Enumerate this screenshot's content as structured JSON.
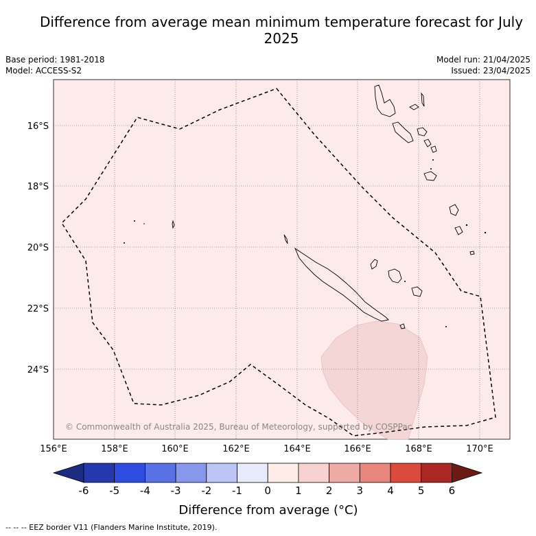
{
  "title": "Difference from average mean minimum temperature forecast for July 2025",
  "meta": {
    "base_period": "Base period: 1981-2018",
    "model": "Model: ACCESS-S2",
    "model_run": "Model run: 21/04/2025",
    "issued": "Issued: 23/04/2025"
  },
  "map": {
    "lat_labels": [
      "16°S",
      "18°S",
      "20°S",
      "22°S",
      "24°S"
    ],
    "lon_labels": [
      "156°E",
      "158°E",
      "160°E",
      "162°E",
      "164°E",
      "166°E",
      "168°E",
      "170°E"
    ],
    "background_class_color": "#fcebea",
    "anomaly_patch_color": "#f3d6d5",
    "copyright": "© Commonwealth of Australia 2025, Bureau of Meteorology, supported by COSPPac"
  },
  "colorbar": {
    "label": "Difference from average (°C)",
    "ticks": [
      "-6",
      "-5",
      "-4",
      "-3",
      "-2",
      "-1",
      "0",
      "1",
      "2",
      "3",
      "4",
      "5",
      "6"
    ],
    "colors": [
      "#1c2c7e",
      "#2439ad",
      "#2e4ce0",
      "#5872e6",
      "#8797eb",
      "#bcc5f5",
      "#e8ebfb",
      "#fdece8",
      "#f6d3d0",
      "#eeaba6",
      "#e8857d",
      "#dc4a3e",
      "#ab2822",
      "#6b1a14"
    ]
  },
  "footer": "-- -- -- EEZ border V11 (Flanders Marine Institute, 2019)."
}
